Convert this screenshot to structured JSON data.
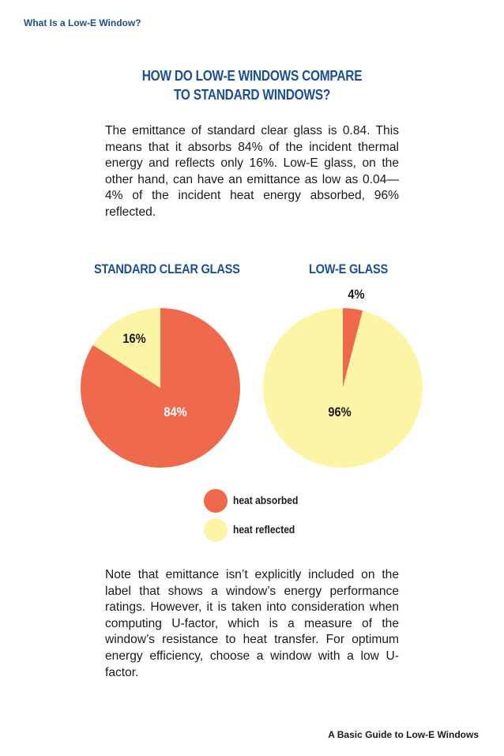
{
  "header": {
    "running_head": "What Is a Low-E Window?"
  },
  "section": {
    "title_line1": "HOW DO LOW-E WINDOWS COMPARE",
    "title_line2": "TO STANDARD WINDOWS?"
  },
  "intro_paragraph": "The emittance of standard clear glass is 0.84. This means that it absorbs 84% of the incident thermal energy and reflects only 16%. Low-E glass, on the other hand, can have an emittance as low as 0.04—4% of the incident heat energy absorbed, 96% reflected.",
  "colors": {
    "absorbed": "#ef6a4c",
    "reflected": "#fdf5a6",
    "title_blue": "#1c4f93"
  },
  "chart_data": [
    {
      "type": "pie",
      "title": "STANDARD CLEAR GLASS",
      "labels": [
        "heat absorbed",
        "heat reflected"
      ],
      "values": [
        84,
        16
      ],
      "value_labels": [
        "84%",
        "16%"
      ],
      "colors": [
        "#ef6a4c",
        "#fdf5a6"
      ]
    },
    {
      "type": "pie",
      "title": "LOW-E GLASS",
      "labels": [
        "heat absorbed",
        "heat reflected"
      ],
      "values": [
        4,
        96
      ],
      "value_labels": [
        "4%",
        "96%"
      ],
      "colors": [
        "#ef6a4c",
        "#fdf5a6"
      ]
    }
  ],
  "legend": [
    {
      "label": "heat absorbed",
      "color": "#ef6a4c"
    },
    {
      "label": "heat reflected",
      "color": "#fdf5a6"
    }
  ],
  "closing_paragraph": "Note that emittance isn’t explicitly included on the label that shows a window’s energy performance ratings. However, it is taken into consideration when computing U-factor, which is a measure of the window’s resistance to heat transfer. For optimum energy efficiency, choose a window with a low U-factor.",
  "footer": {
    "text": "A Basic Guide to Low-E Windows"
  }
}
